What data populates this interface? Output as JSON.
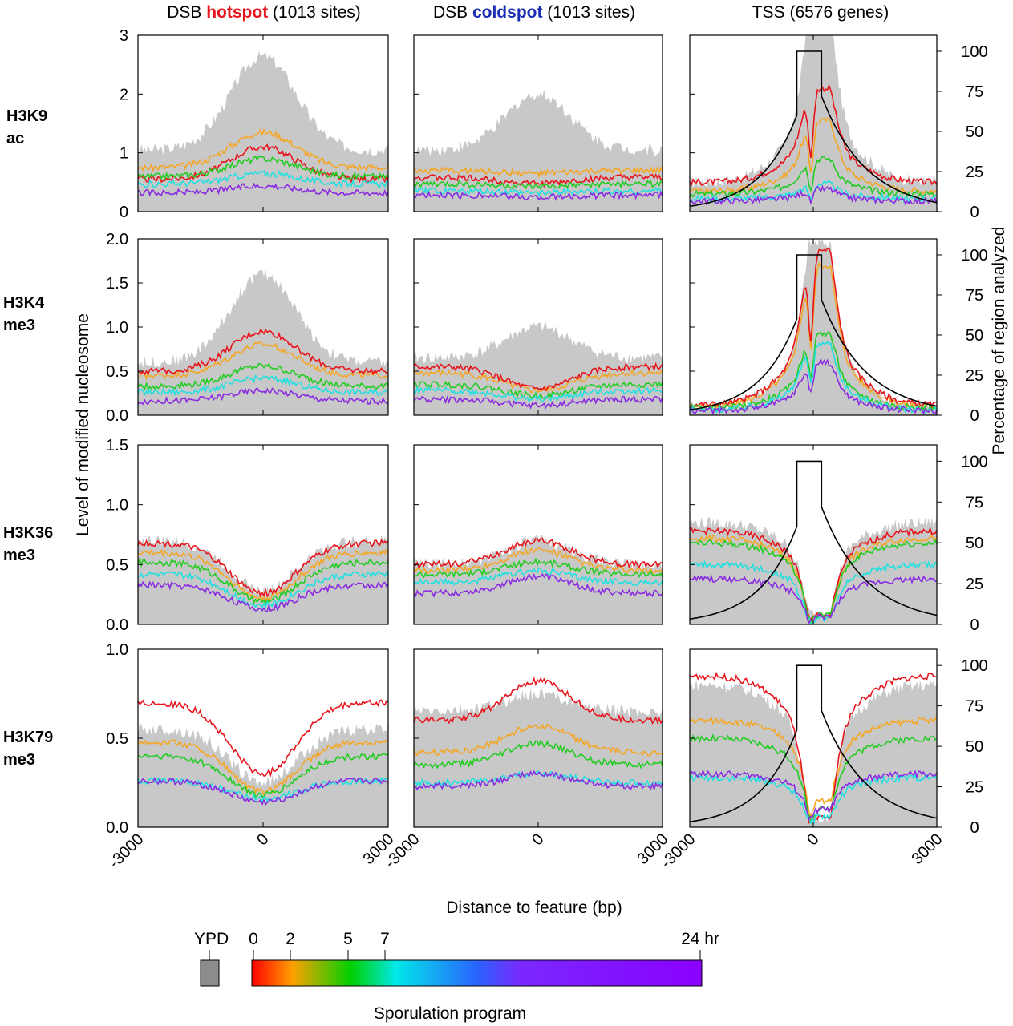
{
  "headers": {
    "hotspot": {
      "prefix": "DSB ",
      "keyword": "hotspot",
      "suffix": " (1013  sites)"
    },
    "coldspot": {
      "prefix": "DSB ",
      "keyword": "coldspot",
      "suffix": " (1013 sites)"
    },
    "tss": "TSS (6576 genes)"
  },
  "colors": {
    "hotspot": "#e8141c",
    "coldspot": "#1c2fb4",
    "gray_fill": "#c8c8c8",
    "ypd_box": "#8c8c8c"
  },
  "row_labels": [
    [
      "H3K9",
      "ac"
    ],
    [
      "H3K4",
      "me3"
    ],
    [
      "H3K36",
      "me3"
    ],
    [
      "H3K79",
      "me3"
    ]
  ],
  "y_axis_label": "Level  of  modified   nucleosome",
  "right_axis_label": "Percentage of region analyzed",
  "x_axis_label": "Distance to feature (bp)",
  "legend": {
    "ypd": "YPD",
    "ticks": [
      "0",
      "2",
      "5",
      "7",
      "24 hr"
    ],
    "title": "Sporulation program"
  },
  "chart_data": {
    "type": "line",
    "x": {
      "range": [
        -3000,
        3000
      ],
      "ticks": [
        "-3000",
        "0",
        "3000"
      ]
    },
    "series_names": [
      "0 hr",
      "2 hr",
      "5 hr",
      "7 hr",
      "24 hr"
    ],
    "series_colors": [
      "#e8141c",
      "#f5a623",
      "#22cc22",
      "#22e0e0",
      "#8a2be2"
    ],
    "right_axis": {
      "range": [
        0,
        110
      ],
      "ticks": [
        "0",
        "25",
        "50",
        "75",
        "100"
      ]
    },
    "rows": [
      {
        "mark": "H3K9ac",
        "ylim": [
          0,
          3
        ],
        "yticks": [
          "0",
          "1",
          "2",
          "3"
        ],
        "hotspot": {
          "gray_base": 1.05,
          "gray_peak": 1.6,
          "values": [
            0.55,
            0.75,
            0.6,
            0.58,
            0.47,
            0.32
          ],
          "peak": [
            0.55,
            0.6,
            0.3,
            0.15,
            0.18,
            0.12
          ]
        },
        "coldspot": {
          "gray_base": 1.05,
          "gray_peak": 0.95,
          "values": [
            0.58,
            0.7,
            0.47,
            0.45,
            0.35,
            0.28
          ],
          "peak": [
            -0.1,
            -0.05,
            -0.05,
            -0.05,
            -0.03,
            -0.03
          ]
        },
        "tss": {
          "gray_base": 0.5,
          "gray_peak": 2.9,
          "values": [
            0.5,
            0.35,
            0.3,
            0.25,
            0.22,
            0.18
          ],
          "peak": [
            1.6,
            1.2,
            0.6,
            0.45,
            0.25,
            0.2
          ]
        }
      },
      {
        "mark": "H3K4me3",
        "ylim": [
          0,
          2.0
        ],
        "yticks": [
          "0.0",
          "0.5",
          "1.0",
          "1.5",
          "2.0"
        ],
        "hotspot": {
          "gray_base": 0.6,
          "gray_peak": 1.0,
          "values": [
            0.5,
            0.45,
            0.33,
            0.28,
            0.26,
            0.16
          ],
          "peak": [
            0.45,
            0.35,
            0.23,
            0.18,
            0.16,
            0.12
          ]
        },
        "coldspot": {
          "gray_base": 0.65,
          "gray_peak": 0.35,
          "values": [
            0.55,
            0.48,
            0.35,
            0.3,
            0.28,
            0.18
          ],
          "peak": [
            -0.25,
            -0.2,
            -0.13,
            -0.1,
            -0.1,
            -0.07
          ]
        },
        "tss": {
          "gray_base": 0.1,
          "gray_peak": 1.85,
          "values": [
            0.12,
            0.1,
            0.08,
            0.07,
            0.06,
            0.05
          ],
          "peak": [
            1.75,
            1.6,
            0.85,
            0.8,
            0.75,
            0.55
          ]
        }
      },
      {
        "mark": "H3K36me3",
        "ylim": [
          0,
          1.5
        ],
        "yticks": [
          "0.0",
          "0.5",
          "1.0",
          "1.5"
        ],
        "hotspot": {
          "gray_base": 0.7,
          "gray_peak": -0.42,
          "values": [
            0.68,
            0.6,
            0.52,
            0.45,
            0.42,
            0.33
          ],
          "peak": [
            -0.42,
            -0.38,
            -0.33,
            -0.28,
            -0.26,
            -0.2
          ]
        },
        "coldspot": {
          "gray_base": 0.5,
          "gray_peak": 0.2,
          "values": [
            0.5,
            0.45,
            0.42,
            0.38,
            0.35,
            0.26
          ],
          "peak": [
            0.2,
            0.17,
            0.1,
            0.1,
            0.1,
            0.14
          ]
        },
        "tss": {
          "gray_base": 0.85,
          "gray_peak": -0.75,
          "values": [
            0.78,
            0.72,
            0.68,
            0.52,
            0.5,
            0.38
          ],
          "peak": [
            -0.7,
            -0.65,
            -0.6,
            -0.45,
            -0.45,
            -0.32
          ]
        }
      },
      {
        "mark": "H3K79me3",
        "ylim": [
          0,
          1.0
        ],
        "yticks": [
          "0.0",
          "0.5",
          "1.0"
        ],
        "hotspot": {
          "gray_base": 0.55,
          "gray_peak": -0.3,
          "values": [
            0.7,
            0.48,
            0.4,
            0.27,
            0.26,
            0.26
          ],
          "peak": [
            -0.4,
            -0.28,
            -0.22,
            -0.1,
            -0.1,
            -0.12
          ]
        },
        "coldspot": {
          "gray_base": 0.65,
          "gray_peak": 0.1,
          "values": [
            0.6,
            0.42,
            0.35,
            0.25,
            0.25,
            0.23
          ],
          "peak": [
            0.22,
            0.15,
            0.12,
            0.05,
            0.05,
            0.07
          ]
        },
        "tss": {
          "gray_base": 0.8,
          "gray_peak": -0.75,
          "values": [
            0.85,
            0.6,
            0.5,
            0.3,
            0.28,
            0.3
          ],
          "peak": [
            -0.8,
            -0.45,
            -0.4,
            -0.25,
            -0.22,
            -0.2
          ]
        }
      }
    ]
  }
}
